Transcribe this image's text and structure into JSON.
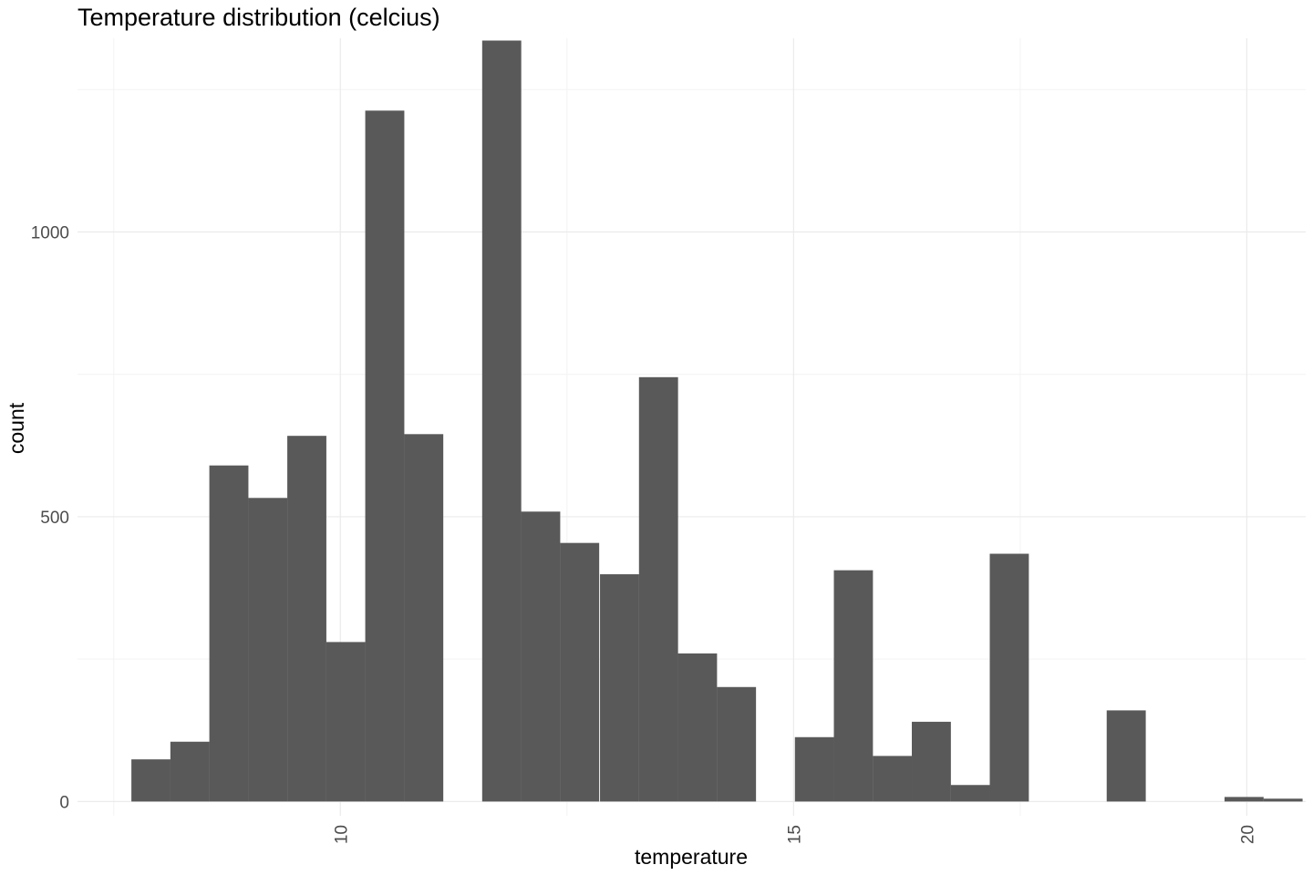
{
  "chart_data": {
    "type": "bar",
    "title": "Temperature distribution (celcius)",
    "xlabel": "temperature",
    "ylabel": "count",
    "xlim": [
      7.1,
      20.65
    ],
    "ylim": [
      -25,
      1340
    ],
    "x_ticks": [
      10,
      15,
      20
    ],
    "y_ticks": [
      0,
      500,
      1000
    ],
    "x_minor_grid": [
      7.5,
      12.5,
      17.5
    ],
    "y_minor_grid": [
      250,
      750,
      1250
    ],
    "bin_width": 0.431,
    "bins": [
      {
        "x": 7.91,
        "count": 74
      },
      {
        "x": 8.34,
        "count": 105
      },
      {
        "x": 8.77,
        "count": 590
      },
      {
        "x": 9.2,
        "count": 533
      },
      {
        "x": 9.63,
        "count": 642
      },
      {
        "x": 10.06,
        "count": 280
      },
      {
        "x": 10.49,
        "count": 1213
      },
      {
        "x": 10.92,
        "count": 645
      },
      {
        "x": 11.35,
        "count": 0
      },
      {
        "x": 11.78,
        "count": 1336
      },
      {
        "x": 12.21,
        "count": 509
      },
      {
        "x": 12.64,
        "count": 454
      },
      {
        "x": 13.08,
        "count": 399
      },
      {
        "x": 13.51,
        "count": 745
      },
      {
        "x": 13.94,
        "count": 260
      },
      {
        "x": 14.37,
        "count": 201
      },
      {
        "x": 14.8,
        "count": 0
      },
      {
        "x": 15.23,
        "count": 113
      },
      {
        "x": 15.66,
        "count": 406
      },
      {
        "x": 16.09,
        "count": 80
      },
      {
        "x": 16.52,
        "count": 140
      },
      {
        "x": 16.95,
        "count": 29
      },
      {
        "x": 17.38,
        "count": 435
      },
      {
        "x": 17.81,
        "count": 0
      },
      {
        "x": 18.24,
        "count": 0
      },
      {
        "x": 18.67,
        "count": 160
      },
      {
        "x": 19.11,
        "count": 0
      },
      {
        "x": 19.54,
        "count": 0
      },
      {
        "x": 19.97,
        "count": 8
      },
      {
        "x": 20.4,
        "count": 5
      }
    ],
    "colors": {
      "bar": "#595959",
      "grid_major": "#ebebeb",
      "grid_minor": "#f3f3f3",
      "tick_text": "#4d4d4d",
      "label_text": "#000000",
      "background": "#ffffff"
    },
    "grid": true,
    "legend": "none"
  }
}
